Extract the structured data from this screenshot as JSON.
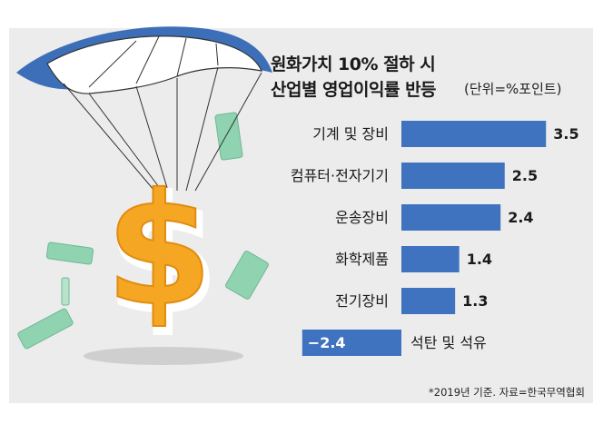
{
  "header": {
    "title_line1": "원화가치 10% 절하 시",
    "title_line2": "산업별 영업이익률 반등",
    "unit": "(단위=%포인트)"
  },
  "colors": {
    "bar": "#3f73bf",
    "panel": "#ececec",
    "dollar": "#f5a623",
    "parachute_blue": "#3d6fb8",
    "cash_green": "#8fd3b0"
  },
  "chart_data": {
    "type": "bar",
    "orientation": "horizontal",
    "categories": [
      "기계 및 장비",
      "컴퓨터·전자기기",
      "운송장비",
      "화학제품",
      "전기장비",
      "석탄 및 석유"
    ],
    "values": [
      3.5,
      2.5,
      2.4,
      1.4,
      1.3,
      -2.4
    ],
    "value_labels": [
      "3.5",
      "2.5",
      "2.4",
      "1.4",
      "1.3",
      "−2.4"
    ],
    "title": "원화가치 10% 절하 시 산업별 영업이익률 반등",
    "unit": "%포인트",
    "xlim": [
      -2.4,
      3.5
    ],
    "grid": false,
    "legend": "none"
  },
  "footer": {
    "source": "*2019년 기준. 자료=한국무역협회"
  },
  "illustration": {
    "icons": [
      "parachute-icon",
      "dollar-sign-icon",
      "banknote-icon"
    ]
  }
}
